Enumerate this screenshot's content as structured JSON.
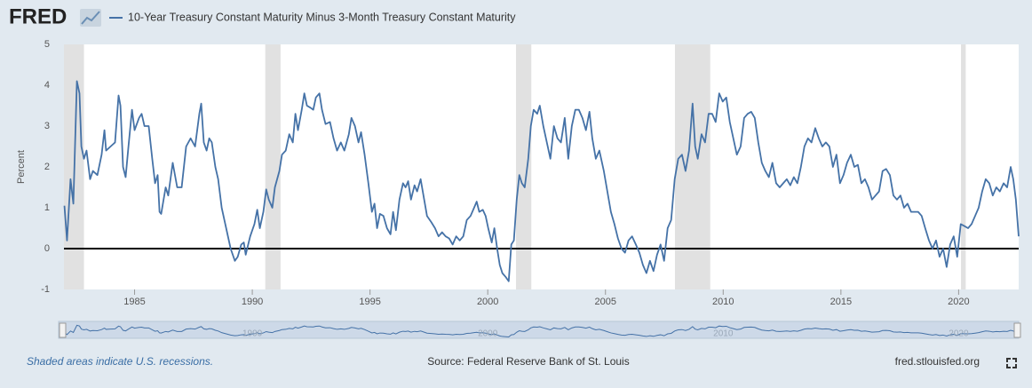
{
  "logo": "FRED",
  "chart_data": {
    "type": "line",
    "y_label": "Percent",
    "x": [
      1982.02,
      1982.13,
      1982.28,
      1982.4,
      1982.55,
      1982.66,
      1982.74,
      1982.85,
      1982.96,
      1983.11,
      1983.23,
      1983.42,
      1983.6,
      1983.72,
      1983.79,
      1983.98,
      1984.17,
      1984.32,
      1984.4,
      1984.51,
      1984.62,
      1984.74,
      1984.89,
      1985.0,
      1985.19,
      1985.3,
      1985.42,
      1985.6,
      1985.75,
      1985.87,
      1985.98,
      1986.06,
      1986.13,
      1986.32,
      1986.43,
      1986.62,
      1986.81,
      1987.0,
      1987.19,
      1987.38,
      1987.57,
      1987.75,
      1987.83,
      1987.94,
      1988.06,
      1988.17,
      1988.28,
      1988.43,
      1988.55,
      1988.7,
      1988.89,
      1989.08,
      1989.26,
      1989.38,
      1989.53,
      1989.64,
      1989.72,
      1989.91,
      1990.09,
      1990.21,
      1990.32,
      1990.47,
      1990.59,
      1990.7,
      1990.85,
      1990.96,
      1991.15,
      1991.26,
      1991.42,
      1991.57,
      1991.72,
      1991.83,
      1991.94,
      1992.1,
      1992.21,
      1992.32,
      1992.47,
      1992.59,
      1992.7,
      1992.85,
      1992.96,
      1993.11,
      1993.3,
      1993.45,
      1993.6,
      1993.76,
      1993.91,
      1994.1,
      1994.21,
      1994.36,
      1994.51,
      1994.62,
      1994.77,
      1994.93,
      1995.08,
      1995.19,
      1995.3,
      1995.42,
      1995.57,
      1995.72,
      1995.87,
      1995.98,
      1996.1,
      1996.25,
      1996.4,
      1996.51,
      1996.62,
      1996.74,
      1996.89,
      1997.0,
      1997.15,
      1997.3,
      1997.42,
      1997.6,
      1997.76,
      1997.91,
      1998.06,
      1998.21,
      1998.36,
      1998.51,
      1998.66,
      1998.81,
      1998.96,
      1999.11,
      1999.27,
      1999.42,
      1999.53,
      1999.64,
      1999.79,
      1999.91,
      2000.02,
      2000.17,
      2000.28,
      2000.4,
      2000.51,
      2000.62,
      2000.77,
      2000.89,
      2001.0,
      2001.11,
      2001.23,
      2001.34,
      2001.45,
      2001.57,
      2001.72,
      2001.83,
      2001.95,
      2002.1,
      2002.21,
      2002.36,
      2002.51,
      2002.66,
      2002.81,
      2002.96,
      2003.11,
      2003.27,
      2003.42,
      2003.57,
      2003.72,
      2003.87,
      2004.02,
      2004.17,
      2004.32,
      2004.44,
      2004.59,
      2004.74,
      2004.93,
      2005.08,
      2005.23,
      2005.38,
      2005.53,
      2005.68,
      2005.83,
      2005.98,
      2006.13,
      2006.29,
      2006.44,
      2006.59,
      2006.74,
      2006.89,
      2007.04,
      2007.19,
      2007.34,
      2007.49,
      2007.64,
      2007.79,
      2007.94,
      2008.09,
      2008.25,
      2008.4,
      2008.55,
      2008.7,
      2008.81,
      2008.92,
      2009.08,
      2009.23,
      2009.38,
      2009.53,
      2009.68,
      2009.83,
      2009.98,
      2010.13,
      2010.28,
      2010.43,
      2010.58,
      2010.74,
      2010.89,
      2011.04,
      2011.19,
      2011.34,
      2011.49,
      2011.64,
      2011.79,
      2011.94,
      2012.09,
      2012.25,
      2012.4,
      2012.55,
      2012.7,
      2012.85,
      2013.0,
      2013.15,
      2013.3,
      2013.45,
      2013.6,
      2013.75,
      2013.91,
      2014.06,
      2014.21,
      2014.36,
      2014.51,
      2014.66,
      2014.81,
      2014.96,
      2015.11,
      2015.26,
      2015.42,
      2015.57,
      2015.72,
      2015.87,
      2016.02,
      2016.17,
      2016.32,
      2016.47,
      2016.62,
      2016.77,
      2016.92,
      2017.08,
      2017.23,
      2017.38,
      2017.53,
      2017.68,
      2017.83,
      2017.98,
      2018.13,
      2018.28,
      2018.43,
      2018.58,
      2018.74,
      2018.89,
      2019.04,
      2019.19,
      2019.34,
      2019.49,
      2019.64,
      2019.79,
      2019.94,
      2020.09,
      2020.25,
      2020.4,
      2020.55,
      2020.7,
      2020.85,
      2021.0,
      2021.15,
      2021.3,
      2021.45,
      2021.6,
      2021.75,
      2021.91,
      2022.06,
      2022.21,
      2022.32,
      2022.43,
      2022.55
    ],
    "series": [
      {
        "name": "10-Year Treasury Constant Maturity Minus 3-Month Treasury Constant Maturity",
        "color": "#4572a7",
        "values": [
          1.05,
          0.2,
          1.7,
          1.1,
          4.1,
          3.8,
          2.5,
          2.2,
          2.4,
          1.7,
          1.9,
          1.8,
          2.3,
          2.9,
          2.4,
          2.5,
          2.6,
          3.75,
          3.5,
          2.0,
          1.75,
          2.5,
          3.4,
          2.9,
          3.2,
          3.3,
          3.0,
          3.0,
          2.2,
          1.6,
          1.8,
          0.9,
          0.85,
          1.5,
          1.3,
          2.1,
          1.5,
          1.5,
          2.5,
          2.7,
          2.5,
          3.3,
          3.55,
          2.6,
          2.4,
          2.7,
          2.6,
          2.0,
          1.7,
          1.0,
          0.5,
          0.0,
          -0.3,
          -0.2,
          0.1,
          0.15,
          -0.15,
          0.3,
          0.6,
          0.95,
          0.5,
          0.9,
          1.45,
          1.2,
          1.0,
          1.5,
          1.9,
          2.3,
          2.4,
          2.8,
          2.6,
          3.3,
          2.9,
          3.4,
          3.8,
          3.5,
          3.45,
          3.4,
          3.7,
          3.8,
          3.4,
          3.05,
          3.1,
          2.7,
          2.4,
          2.6,
          2.4,
          2.8,
          3.2,
          3.0,
          2.6,
          2.85,
          2.3,
          1.6,
          0.9,
          1.1,
          0.5,
          0.85,
          0.8,
          0.5,
          0.35,
          0.9,
          0.45,
          1.2,
          1.6,
          1.5,
          1.65,
          1.2,
          1.55,
          1.4,
          1.7,
          1.2,
          0.8,
          0.65,
          0.5,
          0.3,
          0.4,
          0.3,
          0.25,
          0.1,
          0.3,
          0.2,
          0.3,
          0.7,
          0.8,
          1.0,
          1.15,
          0.9,
          0.95,
          0.8,
          0.5,
          0.15,
          0.5,
          0.0,
          -0.4,
          -0.6,
          -0.7,
          -0.8,
          0.1,
          0.2,
          1.2,
          1.8,
          1.6,
          1.5,
          2.2,
          3.0,
          3.4,
          3.3,
          3.5,
          3.0,
          2.6,
          2.2,
          3.0,
          2.7,
          2.6,
          3.2,
          2.2,
          3.0,
          3.4,
          3.4,
          3.2,
          2.9,
          3.35,
          2.7,
          2.2,
          2.4,
          1.9,
          1.4,
          0.9,
          0.6,
          0.25,
          0.0,
          -0.1,
          0.2,
          0.3,
          0.1,
          -0.1,
          -0.4,
          -0.6,
          -0.3,
          -0.55,
          -0.15,
          0.1,
          -0.3,
          0.5,
          0.7,
          1.7,
          2.2,
          2.3,
          1.9,
          2.4,
          3.55,
          2.5,
          2.2,
          2.8,
          2.6,
          3.3,
          3.3,
          3.1,
          3.8,
          3.6,
          3.7,
          3.1,
          2.7,
          2.3,
          2.5,
          3.2,
          3.3,
          3.35,
          3.2,
          2.6,
          2.1,
          1.9,
          1.75,
          2.1,
          1.6,
          1.5,
          1.6,
          1.7,
          1.55,
          1.75,
          1.6,
          2.0,
          2.5,
          2.7,
          2.6,
          2.95,
          2.7,
          2.5,
          2.6,
          2.5,
          2.0,
          2.3,
          1.6,
          1.8,
          2.1,
          2.3,
          2.0,
          2.05,
          1.6,
          1.7,
          1.5,
          1.2,
          1.3,
          1.4,
          1.9,
          1.95,
          1.8,
          1.3,
          1.2,
          1.3,
          1.0,
          1.1,
          0.9,
          0.9,
          0.9,
          0.8,
          0.5,
          0.2,
          0.0,
          0.2,
          -0.2,
          0.0,
          -0.45,
          0.1,
          0.3,
          -0.2,
          0.6,
          0.55,
          0.5,
          0.6,
          0.8,
          1.0,
          1.4,
          1.7,
          1.6,
          1.3,
          1.5,
          1.4,
          1.6,
          1.5,
          2.0,
          1.7,
          1.2,
          0.3
        ]
      }
    ],
    "xlim": [
      1982.0,
      2022.55
    ],
    "ylim": [
      -1,
      5
    ],
    "xticks": [
      1985,
      1990,
      1995,
      2000,
      2005,
      2010,
      2015,
      2020
    ],
    "yticks": [
      -1,
      0,
      1,
      2,
      3,
      4,
      5
    ],
    "reference_line": 0,
    "recessions": [
      [
        1982.0,
        1982.85
      ],
      [
        1990.55,
        1991.2
      ],
      [
        2001.2,
        2001.85
      ],
      [
        2007.95,
        2009.45
      ],
      [
        2020.1,
        2020.3
      ]
    ],
    "recession_color": "#e1e1e1",
    "navigator_xticks": [
      1990,
      2000,
      2010,
      2020
    ],
    "note": "Shaded areas indicate U.S. recessions.",
    "source": "Source: Federal Reserve Bank of St. Louis",
    "site": "fred.stlouisfed.org"
  }
}
